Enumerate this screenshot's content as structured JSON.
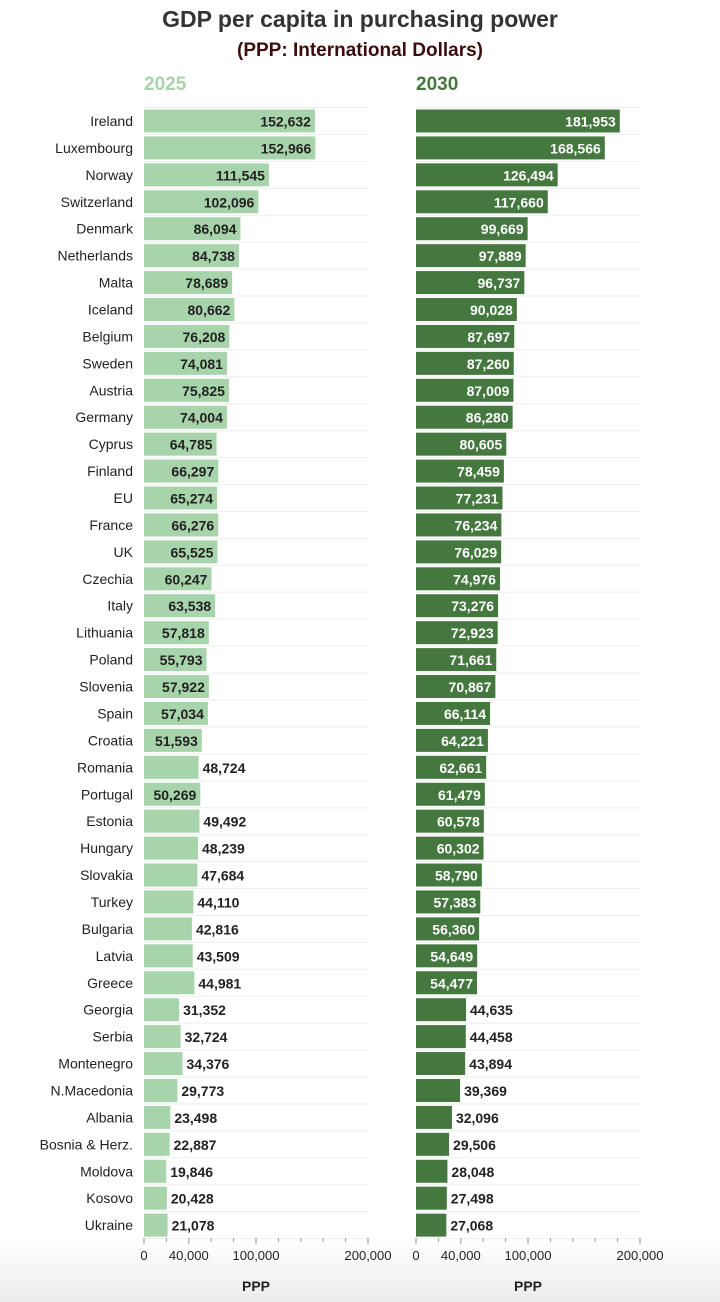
{
  "chart_data": {
    "type": "bar",
    "title": "GDP per capita in purchasing power",
    "subtitle": "(PPP: International Dollars)",
    "categories": [
      "Ireland",
      "Luxembourg",
      "Norway",
      "Switzerland",
      "Denmark",
      "Netherlands",
      "Malta",
      "Iceland",
      "Belgium",
      "Sweden",
      "Austria",
      "Germany",
      "Cyprus",
      "Finland",
      "EU",
      "France",
      "UK",
      "Czechia",
      "Italy",
      "Lithuania",
      "Poland",
      "Slovenia",
      "Spain",
      "Croatia",
      "Romania",
      "Portugal",
      "Estonia",
      "Hungary",
      "Slovakia",
      "Turkey",
      "Bulgaria",
      "Latvia",
      "Greece",
      "Georgia",
      "Serbia",
      "Montenegro",
      "N.Macedonia",
      "Albania",
      "Bosnia & Herz.",
      "Moldova",
      "Kosovo",
      "Ukraine"
    ],
    "series": [
      {
        "name": "2025",
        "color": "#a7d4aa",
        "values": [
          152632,
          152966,
          111545,
          102096,
          86094,
          84738,
          78689,
          80662,
          76208,
          74081,
          75825,
          74004,
          64785,
          66297,
          65274,
          66276,
          65525,
          60247,
          63538,
          57818,
          55793,
          57922,
          57034,
          51593,
          48724,
          50269,
          49492,
          48239,
          47684,
          44110,
          42816,
          43509,
          44981,
          31352,
          32724,
          34376,
          29773,
          23498,
          22887,
          19846,
          20428,
          21078
        ],
        "labels": [
          "152,632",
          "152,966",
          "111,545",
          "102,096",
          "86,094",
          "84,738",
          "78,689",
          "80,662",
          "76,208",
          "74,081",
          "75,825",
          "74,004",
          "64,785",
          "66,297",
          "65,274",
          "66,276",
          "65,525",
          "60,247",
          "63,538",
          "57,818",
          "55,793",
          "57,922",
          "57,034",
          "51,593",
          "48,724",
          "50,269",
          "49,492",
          "48,239",
          "47,684",
          "44,110",
          "42,816",
          "43,509",
          "44,981",
          "31,352",
          "32,724",
          "34,376",
          "29,773",
          "23,498",
          "22,887",
          "19,846",
          "20,428",
          "21,078"
        ]
      },
      {
        "name": "2030",
        "color": "#44783f",
        "values": [
          181953,
          168566,
          126494,
          117660,
          99669,
          97889,
          96737,
          90028,
          87697,
          87260,
          87009,
          86280,
          80605,
          78459,
          77231,
          76234,
          76029,
          74976,
          73276,
          72923,
          71661,
          70867,
          66114,
          64221,
          62661,
          61479,
          60578,
          60302,
          58790,
          57383,
          56360,
          54649,
          54477,
          44635,
          44458,
          43894,
          39369,
          32096,
          29506,
          28048,
          27498,
          27068
        ],
        "labels": [
          "181,953",
          "168,566",
          "126,494",
          "117,660",
          "99,669",
          "97,889",
          "96,737",
          "90,028",
          "87,697",
          "87,260",
          "87,009",
          "86,280",
          "80,605",
          "78,459",
          "77,231",
          "76,234",
          "76,029",
          "74,976",
          "73,276",
          "72,923",
          "71,661",
          "70,867",
          "66,114",
          "64,221",
          "62,661",
          "61,479",
          "60,578",
          "60,302",
          "58,790",
          "57,383",
          "56,360",
          "54,649",
          "54,477",
          "44,635",
          "44,458",
          "43,894",
          "39,369",
          "32,096",
          "29,506",
          "28,048",
          "27,498",
          "27,068"
        ]
      }
    ],
    "xlabel": "PPP",
    "xlim": [
      0,
      200000
    ],
    "xticks": [
      0,
      40000,
      100000,
      200000
    ],
    "xtick_labels": [
      "0",
      "40,000",
      "100,000",
      "200,000"
    ],
    "grid": true,
    "label_color_dark": "#222222",
    "label_color_light": "#ffffff",
    "label_inside_threshold_2025": 50000,
    "label_inside_threshold_2030": 50000
  }
}
